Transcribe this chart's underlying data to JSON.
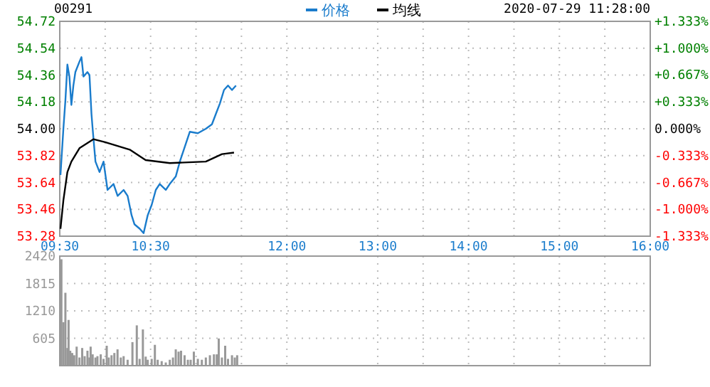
{
  "chart_data": [
    {
      "type": "line",
      "title": "00291",
      "annotations": [
        "2020-07-29 11:28:00"
      ],
      "xlim": [
        9.5,
        16
      ],
      "xticks": [
        {
          "value": 9.5,
          "label": "09:30"
        },
        {
          "value": 10,
          "label": null
        },
        {
          "value": 10.5,
          "label": "10:30"
        },
        {
          "value": 11,
          "label": null
        },
        {
          "value": 11.5,
          "label": null
        },
        {
          "value": 12,
          "label": "12:00"
        },
        {
          "value": 13,
          "label": "13:00"
        },
        {
          "value": 13.5,
          "label": null
        },
        {
          "value": 14,
          "label": "14:00"
        },
        {
          "value": 14.5,
          "label": null
        },
        {
          "value": 15,
          "label": "15:00"
        },
        {
          "value": 15.5,
          "label": null
        },
        {
          "value": 16,
          "label": "16:00"
        }
      ],
      "ylim": [
        53.28,
        54.72
      ],
      "yticks": [
        53.28,
        53.46,
        53.64,
        53.82,
        {
          "value": 54,
          "label": "54.00"
        },
        54.18,
        54.36,
        54.54,
        54.72
      ],
      "y2lim": [
        -1.333,
        1.333
      ],
      "y2ticks": [
        {
          "value": -1.333,
          "label": "-1.333%"
        },
        {
          "value": -1,
          "label": "-1.000%"
        },
        {
          "value": -0.667,
          "label": "-0.667%"
        },
        {
          "value": -0.333,
          "label": "-0.333%"
        },
        {
          "value": 0,
          "label": "0.000%"
        },
        {
          "value": 0.333,
          "label": "+0.333%"
        },
        {
          "value": 0.667,
          "label": "+0.667%"
        },
        {
          "value": 1,
          "label": "+1.000%"
        },
        {
          "value": 1.333,
          "label": "+1.333%"
        }
      ],
      "grid": true,
      "legend": "top",
      "series": [
        {
          "name": "价格",
          "color": "#1a7ccc",
          "x": [
            9.508,
            9.54,
            9.562,
            9.584,
            9.606,
            9.628,
            9.65,
            9.672,
            9.717,
            9.739,
            9.761,
            9.805,
            9.827,
            9.849,
            9.862,
            9.893,
            9.938,
            9.982,
            10.026,
            10.092,
            10.137,
            10.203,
            10.247,
            10.291,
            10.322,
            10.38,
            10.423,
            10.468,
            10.512,
            10.557,
            10.6,
            10.667,
            10.711,
            10.777,
            10.822,
            10.888,
            10.932,
            11.02,
            11.108,
            11.175,
            11.219,
            11.263,
            11.308,
            11.352,
            11.396,
            11.44
          ],
          "values": [
            53.69,
            54.0,
            54.19,
            54.43,
            54.35,
            54.16,
            54.29,
            54.38,
            54.45,
            54.48,
            54.35,
            54.38,
            54.36,
            54.1,
            54.0,
            53.78,
            53.71,
            53.78,
            53.59,
            53.63,
            53.55,
            53.59,
            53.55,
            53.42,
            53.36,
            53.33,
            53.3,
            53.42,
            53.49,
            53.59,
            53.63,
            53.59,
            53.63,
            53.68,
            53.78,
            53.9,
            53.98,
            53.97,
            54.0,
            54.03,
            54.1,
            54.17,
            54.26,
            54.29,
            54.26,
            54.29
          ]
        },
        {
          "name": "均线",
          "color": "#000000",
          "x": [
            9.508,
            9.54,
            9.584,
            9.628,
            9.717,
            9.87,
            10.0,
            10.27,
            10.445,
            10.711,
            11.108,
            11.286,
            11.418
          ],
          "values": [
            53.33,
            53.52,
            53.71,
            53.78,
            53.87,
            53.93,
            53.91,
            53.86,
            53.79,
            53.77,
            53.78,
            53.83,
            53.84
          ]
        }
      ]
    },
    {
      "type": "bar",
      "color": "#999999",
      "xlim": [
        9.5,
        16
      ],
      "xticks": [
        9.5,
        10,
        10.5,
        11,
        11.5,
        12,
        13,
        13.5,
        14,
        14.5,
        15,
        15.5,
        16
      ],
      "ylim": [
        0,
        2420
      ],
      "yticks": [
        605,
        1210,
        1815,
        2420
      ],
      "grid": true,
      "tick_labels": "y",
      "x": [
        9.518,
        9.54,
        9.562,
        9.584,
        9.597,
        9.615,
        9.637,
        9.659,
        9.686,
        9.717,
        9.747,
        9.774,
        9.805,
        9.827,
        9.84,
        9.862,
        9.893,
        9.915,
        9.951,
        9.982,
        10.017,
        10.039,
        10.07,
        10.101,
        10.136,
        10.172,
        10.203,
        10.247,
        10.3,
        10.348,
        10.379,
        10.415,
        10.446,
        10.468,
        10.512,
        10.547,
        10.578,
        10.622,
        10.667,
        10.711,
        10.746,
        10.777,
        10.808,
        10.835,
        10.874,
        10.91,
        10.941,
        10.976,
        11.02,
        11.064,
        11.108,
        11.153,
        11.197,
        11.228,
        11.25,
        11.285,
        11.321,
        11.352,
        11.396,
        11.427,
        11.453
      ],
      "values": [
        2350,
        960,
        1610,
        390,
        1010,
        330,
        280,
        230,
        420,
        180,
        390,
        210,
        330,
        180,
        420,
        250,
        180,
        210,
        250,
        150,
        440,
        180,
        230,
        280,
        360,
        180,
        210,
        130,
        520,
        890,
        150,
        800,
        200,
        130,
        150,
        460,
        130,
        100,
        70,
        130,
        180,
        360,
        310,
        330,
        230,
        130,
        130,
        310,
        150,
        130,
        180,
        230,
        250,
        250,
        600,
        180,
        440,
        150,
        230,
        180,
        230
      ]
    }
  ]
}
